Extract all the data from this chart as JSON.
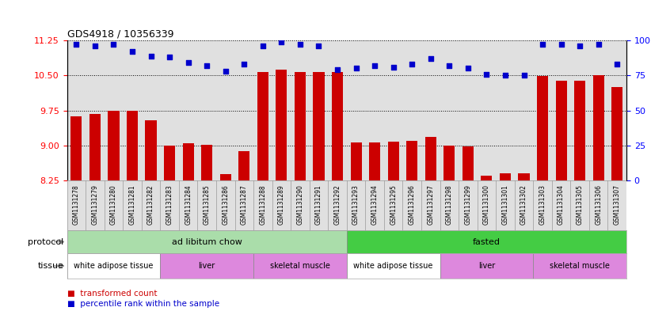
{
  "title": "GDS4918 / 10356339",
  "samples": [
    "GSM1131278",
    "GSM1131279",
    "GSM1131280",
    "GSM1131281",
    "GSM1131282",
    "GSM1131283",
    "GSM1131284",
    "GSM1131285",
    "GSM1131286",
    "GSM1131287",
    "GSM1131288",
    "GSM1131289",
    "GSM1131290",
    "GSM1131291",
    "GSM1131292",
    "GSM1131293",
    "GSM1131294",
    "GSM1131295",
    "GSM1131296",
    "GSM1131297",
    "GSM1131298",
    "GSM1131299",
    "GSM1131300",
    "GSM1131301",
    "GSM1131302",
    "GSM1131303",
    "GSM1131304",
    "GSM1131305",
    "GSM1131306",
    "GSM1131307"
  ],
  "bar_values": [
    9.62,
    9.67,
    9.75,
    9.75,
    9.53,
    9.0,
    9.05,
    9.02,
    8.38,
    8.88,
    10.57,
    10.62,
    10.58,
    10.57,
    10.57,
    9.07,
    9.07,
    9.08,
    9.1,
    9.19,
    9.0,
    8.98,
    8.35,
    8.4,
    8.4,
    10.48,
    10.38,
    10.38,
    10.5,
    10.25
  ],
  "percentile_values": [
    97,
    96,
    97,
    92,
    89,
    88,
    84,
    82,
    78,
    83,
    96,
    99,
    97,
    96,
    79,
    80,
    82,
    81,
    83,
    87,
    82,
    80,
    76,
    75,
    75,
    97,
    97,
    96,
    97,
    83
  ],
  "ylim_left": [
    8.25,
    11.25
  ],
  "ylim_right": [
    0,
    100
  ],
  "yticks_left": [
    8.25,
    9.0,
    9.75,
    10.5,
    11.25
  ],
  "yticks_right": [
    0,
    25,
    50,
    75,
    100
  ],
  "bar_color": "#cc0000",
  "dot_color": "#0000cc",
  "bg_color": "#e0e0e0",
  "protocol_groups": [
    {
      "label": "ad libitum chow",
      "start": 0,
      "end": 14,
      "color": "#aaddaa"
    },
    {
      "label": "fasted",
      "start": 15,
      "end": 29,
      "color": "#44cc44"
    }
  ],
  "tissue_groups": [
    {
      "label": "white adipose tissue",
      "start": 0,
      "end": 4,
      "color": "#ffffff"
    },
    {
      "label": "liver",
      "start": 5,
      "end": 9,
      "color": "#dd88dd"
    },
    {
      "label": "skeletal muscle",
      "start": 10,
      "end": 14,
      "color": "#dd88dd"
    },
    {
      "label": "white adipose tissue",
      "start": 15,
      "end": 19,
      "color": "#ffffff"
    },
    {
      "label": "liver",
      "start": 20,
      "end": 24,
      "color": "#dd88dd"
    },
    {
      "label": "skeletal muscle",
      "start": 25,
      "end": 29,
      "color": "#dd88dd"
    }
  ]
}
